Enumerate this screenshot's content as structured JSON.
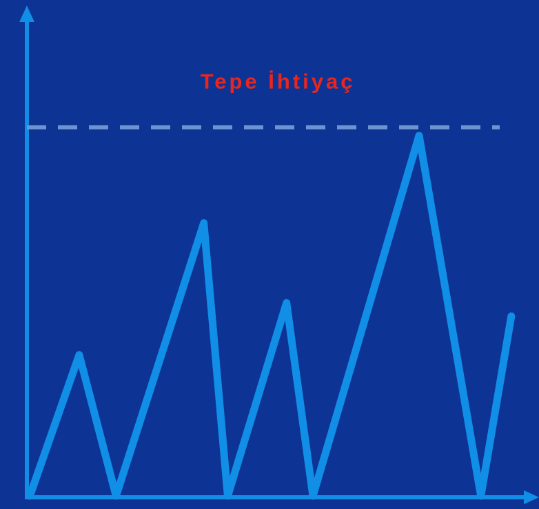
{
  "chart_data": {
    "type": "line",
    "title": "",
    "xlabel": "",
    "ylabel": "",
    "grid": false,
    "ticks": false,
    "ylim": [
      0,
      100
    ],
    "xlim": [
      0,
      100
    ],
    "series": [
      {
        "values": [
          [
            0.6,
            0
          ],
          [
            10.5,
            39
          ],
          [
            17.9,
            0
          ],
          [
            35.5,
            75.5
          ],
          [
            40.3,
            0
          ],
          [
            52.1,
            53.4
          ],
          [
            57.4,
            0
          ],
          [
            78.7,
            99.7
          ],
          [
            91.1,
            0
          ],
          [
            97.2,
            49.7
          ]
        ]
      }
    ],
    "reference_lines": [
      {
        "label": "Tepe İhtiyaç",
        "y": 102
      }
    ],
    "colors": {
      "background": "#0d3494",
      "axis": "#118ee5",
      "series": "#118ee5",
      "reference_line": "#6e94cf",
      "reference_label": "#e8261e"
    }
  }
}
